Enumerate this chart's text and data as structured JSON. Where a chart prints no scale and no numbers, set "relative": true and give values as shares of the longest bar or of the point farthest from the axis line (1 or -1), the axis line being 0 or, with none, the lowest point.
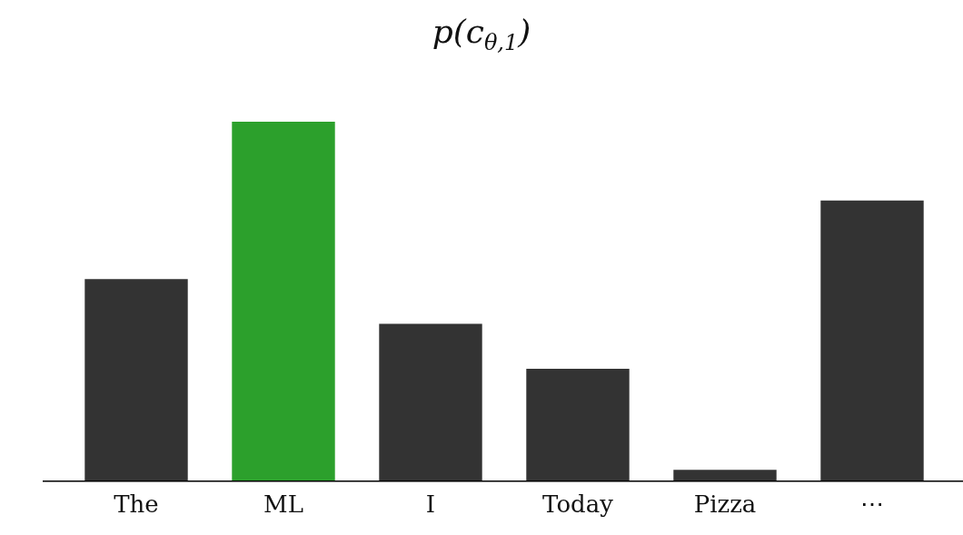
{
  "chart_data": {
    "type": "bar",
    "title": "p(c$_{θ,1}$)",
    "categories": [
      "The",
      "ML",
      "I",
      "Today",
      "Pizza",
      "⋯"
    ],
    "values": [
      0.562,
      1,
      0.438,
      0.313,
      0.032,
      0.781
    ],
    "colors": [
      "#333333",
      "#2ca02c",
      "#333333",
      "#333333",
      "#333333",
      "#333333"
    ],
    "relative": true,
    "grid": false,
    "legend": false
  }
}
